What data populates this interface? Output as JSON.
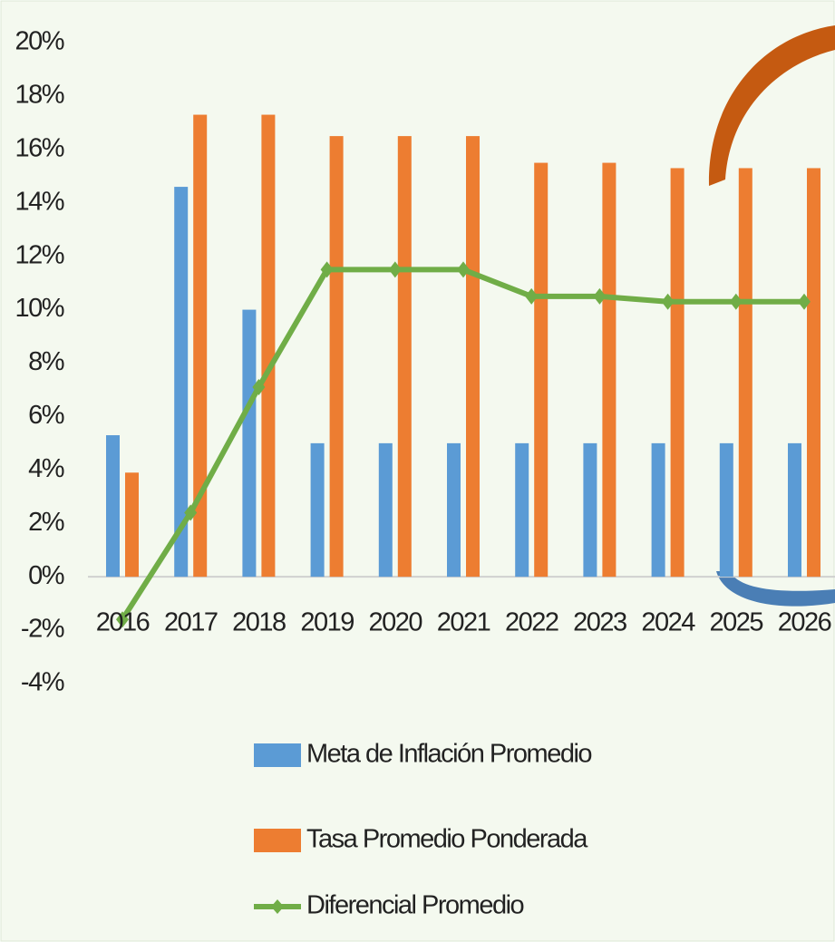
{
  "chart_data": {
    "type": "bar",
    "categories": [
      "2016",
      "2017",
      "2018",
      "2019",
      "2020",
      "2021",
      "2022",
      "2023",
      "2024",
      "2025",
      "2026"
    ],
    "series": [
      {
        "name": "Meta de Inflación Promedio",
        "type": "bar",
        "color": "#5b9bd5",
        "values": [
          5.3,
          14.6,
          10.0,
          5.0,
          5.0,
          5.0,
          5.0,
          5.0,
          5.0,
          5.0,
          5.0
        ]
      },
      {
        "name": "Tasa Promedio Ponderada",
        "type": "bar",
        "color": "#ed7d31",
        "values": [
          3.9,
          17.3,
          17.3,
          16.5,
          16.5,
          16.5,
          15.5,
          15.5,
          15.3,
          15.3,
          15.3
        ]
      },
      {
        "name": "Diferencial Promedio",
        "type": "line",
        "color": "#70ad47",
        "values": [
          -1.6,
          2.4,
          7.1,
          11.5,
          11.5,
          11.5,
          10.5,
          10.5,
          10.3,
          10.3,
          10.3
        ]
      }
    ],
    "ylim": [
      -4,
      20
    ],
    "yticks": [
      {
        "value": -4,
        "label": "-4%"
      },
      {
        "value": -2,
        "label": "-2%"
      },
      {
        "value": 0,
        "label": "0%"
      },
      {
        "value": 2,
        "label": "2%"
      },
      {
        "value": 4,
        "label": "4%"
      },
      {
        "value": 6,
        "label": "6%"
      },
      {
        "value": 8,
        "label": "8%"
      },
      {
        "value": 10,
        "label": "10%"
      },
      {
        "value": 12,
        "label": "12%"
      },
      {
        "value": 14,
        "label": "14%"
      },
      {
        "value": 16,
        "label": "16%"
      },
      {
        "value": 18,
        "label": "18%"
      },
      {
        "value": 20,
        "label": "20%"
      }
    ],
    "grid": false,
    "legend": "bottom"
  }
}
